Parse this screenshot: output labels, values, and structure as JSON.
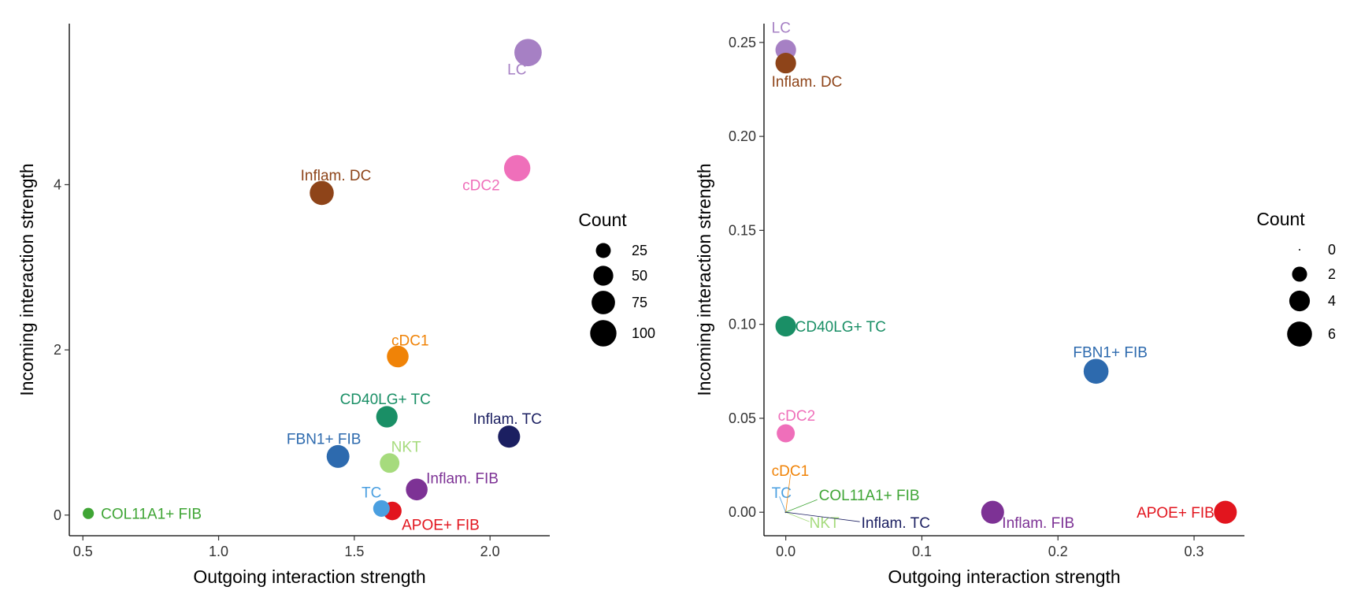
{
  "chart_data": [
    {
      "type": "scatter",
      "xlabel": "Outgoing interaction strength",
      "ylabel": "Incoming interaction strength",
      "xlim": [
        0.45,
        2.22
      ],
      "ylim": [
        -0.25,
        5.95
      ],
      "x_ticks": [
        0.5,
        1.0,
        1.5,
        2.0
      ],
      "x_tick_labels": [
        "0.5",
        "1.0",
        "1.5",
        "2.0"
      ],
      "y_ticks": [
        0,
        2,
        4
      ],
      "y_tick_labels": [
        "0",
        "2",
        "4"
      ],
      "grid": false,
      "legend": {
        "title": "Count",
        "position": "right",
        "entries": [
          {
            "label": "25",
            "value": 25
          },
          {
            "label": "50",
            "value": 50
          },
          {
            "label": "75",
            "value": 75
          },
          {
            "label": "100",
            "value": 100
          }
        ]
      },
      "size_range": [
        10,
        120
      ],
      "points": [
        {
          "name": "LC",
          "x": 2.14,
          "y": 5.6,
          "count": 110,
          "color": "#A680C4",
          "label_pos": "below-left"
        },
        {
          "name": "cDC2",
          "x": 2.1,
          "y": 4.2,
          "count": 100,
          "color": "#EF6FBA",
          "label_pos": "below-left"
        },
        {
          "name": "Inflam. DC",
          "x": 1.38,
          "y": 3.9,
          "count": 80,
          "color": "#8E4419",
          "label_pos": "above"
        },
        {
          "name": "cDC1",
          "x": 1.66,
          "y": 1.92,
          "count": 62,
          "color": "#F08307",
          "label_pos": "above-right"
        },
        {
          "name": "CD40LG+ TC",
          "x": 1.62,
          "y": 1.19,
          "count": 60,
          "color": "#1A8F66",
          "label_pos": "above"
        },
        {
          "name": "Inflam. TC",
          "x": 2.07,
          "y": 0.95,
          "count": 65,
          "color": "#1B1F61",
          "label_pos": "above"
        },
        {
          "name": "FBN1+ FIB",
          "x": 1.44,
          "y": 0.71,
          "count": 70,
          "color": "#2D6AAE",
          "label_pos": "above-left"
        },
        {
          "name": "NKT",
          "x": 1.63,
          "y": 0.63,
          "count": 48,
          "color": "#A6DB7D",
          "label_pos": "above-right"
        },
        {
          "name": "Inflam. FIB",
          "x": 1.73,
          "y": 0.31,
          "count": 62,
          "color": "#7D3295",
          "label_pos": "right"
        },
        {
          "name": "TC",
          "x": 1.6,
          "y": 0.08,
          "count": 32,
          "color": "#4A9FE0",
          "label_pos": "above-left"
        },
        {
          "name": "APOE+ FIB",
          "x": 1.64,
          "y": 0.05,
          "count": 42,
          "color": "#E2151E",
          "label_pos": "below-right"
        },
        {
          "name": "COL11A1+ FIB",
          "x": 0.52,
          "y": 0.02,
          "count": 14,
          "color": "#3FA535",
          "label_pos": "right"
        }
      ]
    },
    {
      "type": "scatter",
      "xlabel": "Outgoing interaction strength",
      "ylabel": "Incoming interaction strength",
      "xlim": [
        -0.016,
        0.337
      ],
      "ylim": [
        -0.0125,
        0.26
      ],
      "x_ticks": [
        0.0,
        0.1,
        0.2,
        0.3
      ],
      "x_tick_labels": [
        "0.0",
        "0.1",
        "0.2",
        "0.3"
      ],
      "y_ticks": [
        0.0,
        0.05,
        0.1,
        0.15,
        0.2,
        0.25
      ],
      "y_tick_labels": [
        "0.00",
        "0.05",
        "0.10",
        "0.15",
        "0.20",
        "0.25"
      ],
      "grid": false,
      "legend": {
        "title": "Count",
        "position": "right",
        "entries": [
          {
            "label": "0",
            "value": 0
          },
          {
            "label": "2",
            "value": 2
          },
          {
            "label": "4",
            "value": 4
          },
          {
            "label": "6",
            "value": 6
          }
        ]
      },
      "size_range": [
        0,
        7
      ],
      "points": [
        {
          "name": "LC",
          "x": 0.0,
          "y": 0.246,
          "count": 4,
          "color": "#A680C4",
          "label_pos": "above"
        },
        {
          "name": "Inflam. DC",
          "x": 0.0,
          "y": 0.239,
          "count": 4,
          "color": "#8E4419",
          "label_pos": "below-right"
        },
        {
          "name": "CD40LG+ TC",
          "x": 0.0,
          "y": 0.099,
          "count": 4,
          "color": "#1A8F66",
          "label_pos": "right"
        },
        {
          "name": "FBN1+ FIB",
          "x": 0.228,
          "y": 0.075,
          "count": 6,
          "color": "#2D6AAE",
          "label_pos": "above"
        },
        {
          "name": "cDC2",
          "x": 0.0,
          "y": 0.042,
          "count": 3,
          "color": "#EF6FBA",
          "label_pos": "above-right"
        },
        {
          "name": "cDC1",
          "x": 0.0,
          "y": 0.0,
          "count": 0,
          "color": "#F08307",
          "label_pos": "above-right"
        },
        {
          "name": "TC",
          "x": 0.0,
          "y": 0.0,
          "count": 0,
          "color": "#4A9FE0",
          "label_pos": "above-left"
        },
        {
          "name": "COL11A1+ FIB",
          "x": 0.0,
          "y": 0.0,
          "count": 0,
          "color": "#3FA535",
          "label_pos": "right"
        },
        {
          "name": "NKT",
          "x": 0.0,
          "y": 0.0,
          "count": 0,
          "color": "#A6DB7D",
          "label_pos": "below-right"
        },
        {
          "name": "Inflam. TC",
          "x": 0.0,
          "y": 0.0,
          "count": 0,
          "color": "#1B1F61",
          "label_pos": "below-right"
        },
        {
          "name": "Inflam. FIB",
          "x": 0.152,
          "y": 0.0,
          "count": 5,
          "color": "#7D3295",
          "label_pos": "below-right"
        },
        {
          "name": "APOE+ FIB",
          "x": 0.323,
          "y": 0.0,
          "count": 5,
          "color": "#E2151E",
          "label_pos": "left"
        }
      ]
    }
  ]
}
